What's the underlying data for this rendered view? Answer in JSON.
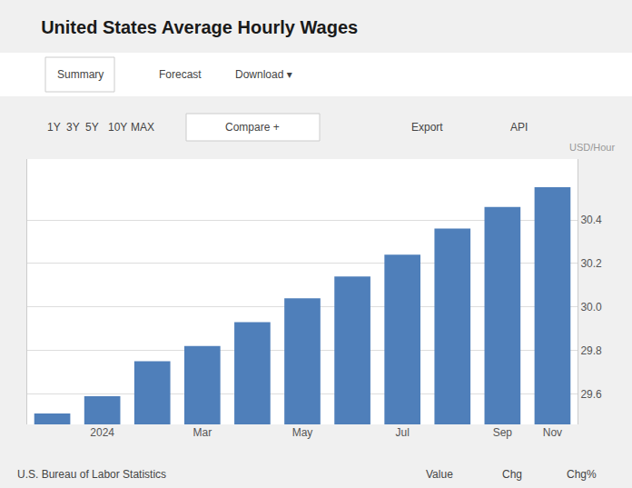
{
  "chart_data": {
    "type": "bar",
    "title": "United States Average Hourly Wages",
    "ylabel": "USD/Hour",
    "categories": [
      null,
      "2024",
      null,
      "Mar",
      null,
      "May",
      null,
      "Jul",
      null,
      "Sep",
      "Nov"
    ],
    "values": [
      29.51,
      29.59,
      29.75,
      29.82,
      29.93,
      30.04,
      30.14,
      30.24,
      30.36,
      30.46,
      30.55
    ],
    "color": "#4f7fba",
    "ylim": [
      29.46,
      30.68
    ],
    "yticks": [
      29.6,
      29.8,
      {
        "value": 30.0,
        "label": "30.0"
      },
      30.2,
      30.4
    ],
    "grid": true,
    "annotations": [
      "Summary",
      "Forecast",
      "Download ▾",
      "1Y",
      "3Y",
      "5Y",
      "10Y",
      "MAX",
      "Compare +",
      "Export",
      "API",
      "U.S. Bureau of Labor Statistics",
      "Value",
      "Chg",
      "Chg%"
    ]
  }
}
